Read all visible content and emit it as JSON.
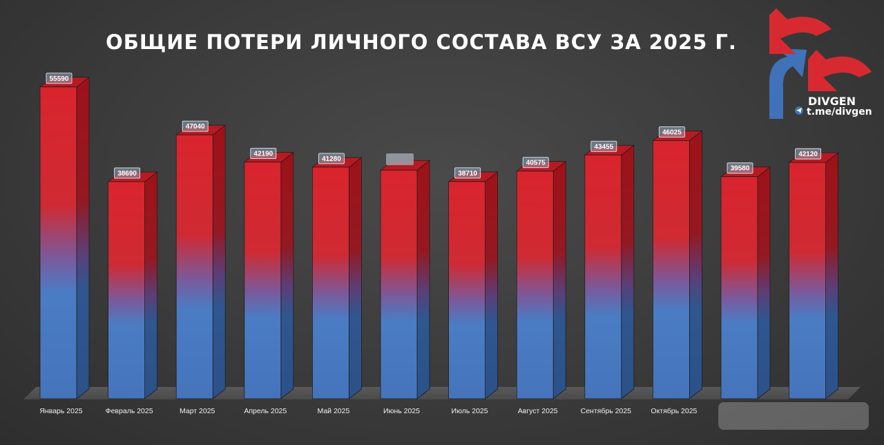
{
  "chart_data": {
    "type": "bar",
    "title": "ОБЩИЕ ПОТЕРИ ЛИЧНОГО СОСТАВА ВСУ ЗА 2025 Г.",
    "categories": [
      "Январь 2025",
      "Февраль 2025",
      "Март 2025",
      "Апрель 2025",
      "Май 2025",
      "Июнь 2025",
      "Июль 2025",
      "Август 2025",
      "Сентябрь 2025",
      "Октябрь 2025",
      "",
      ""
    ],
    "values": [
      55590,
      38690,
      47040,
      42190,
      41280,
      40750,
      38710,
      40575,
      43455,
      46025,
      39580,
      42120
    ],
    "labels": [
      "55590",
      "38690",
      "47040",
      "42190",
      "41280",
      "",
      "38710",
      "40575",
      "43455",
      "46025",
      "39580",
      "42120"
    ],
    "ylim": [
      0,
      60000
    ],
    "grid": false,
    "colors": {
      "top": "#d4222c",
      "bottom": "#4a7cc4",
      "label_box": "#8fa4b8"
    }
  },
  "logo": {
    "name": "DIVGEN",
    "link": "t.me/divgen",
    "icon": "telegram-icon",
    "colors": {
      "red": "#d62a30",
      "blue": "#3f72b8"
    }
  }
}
